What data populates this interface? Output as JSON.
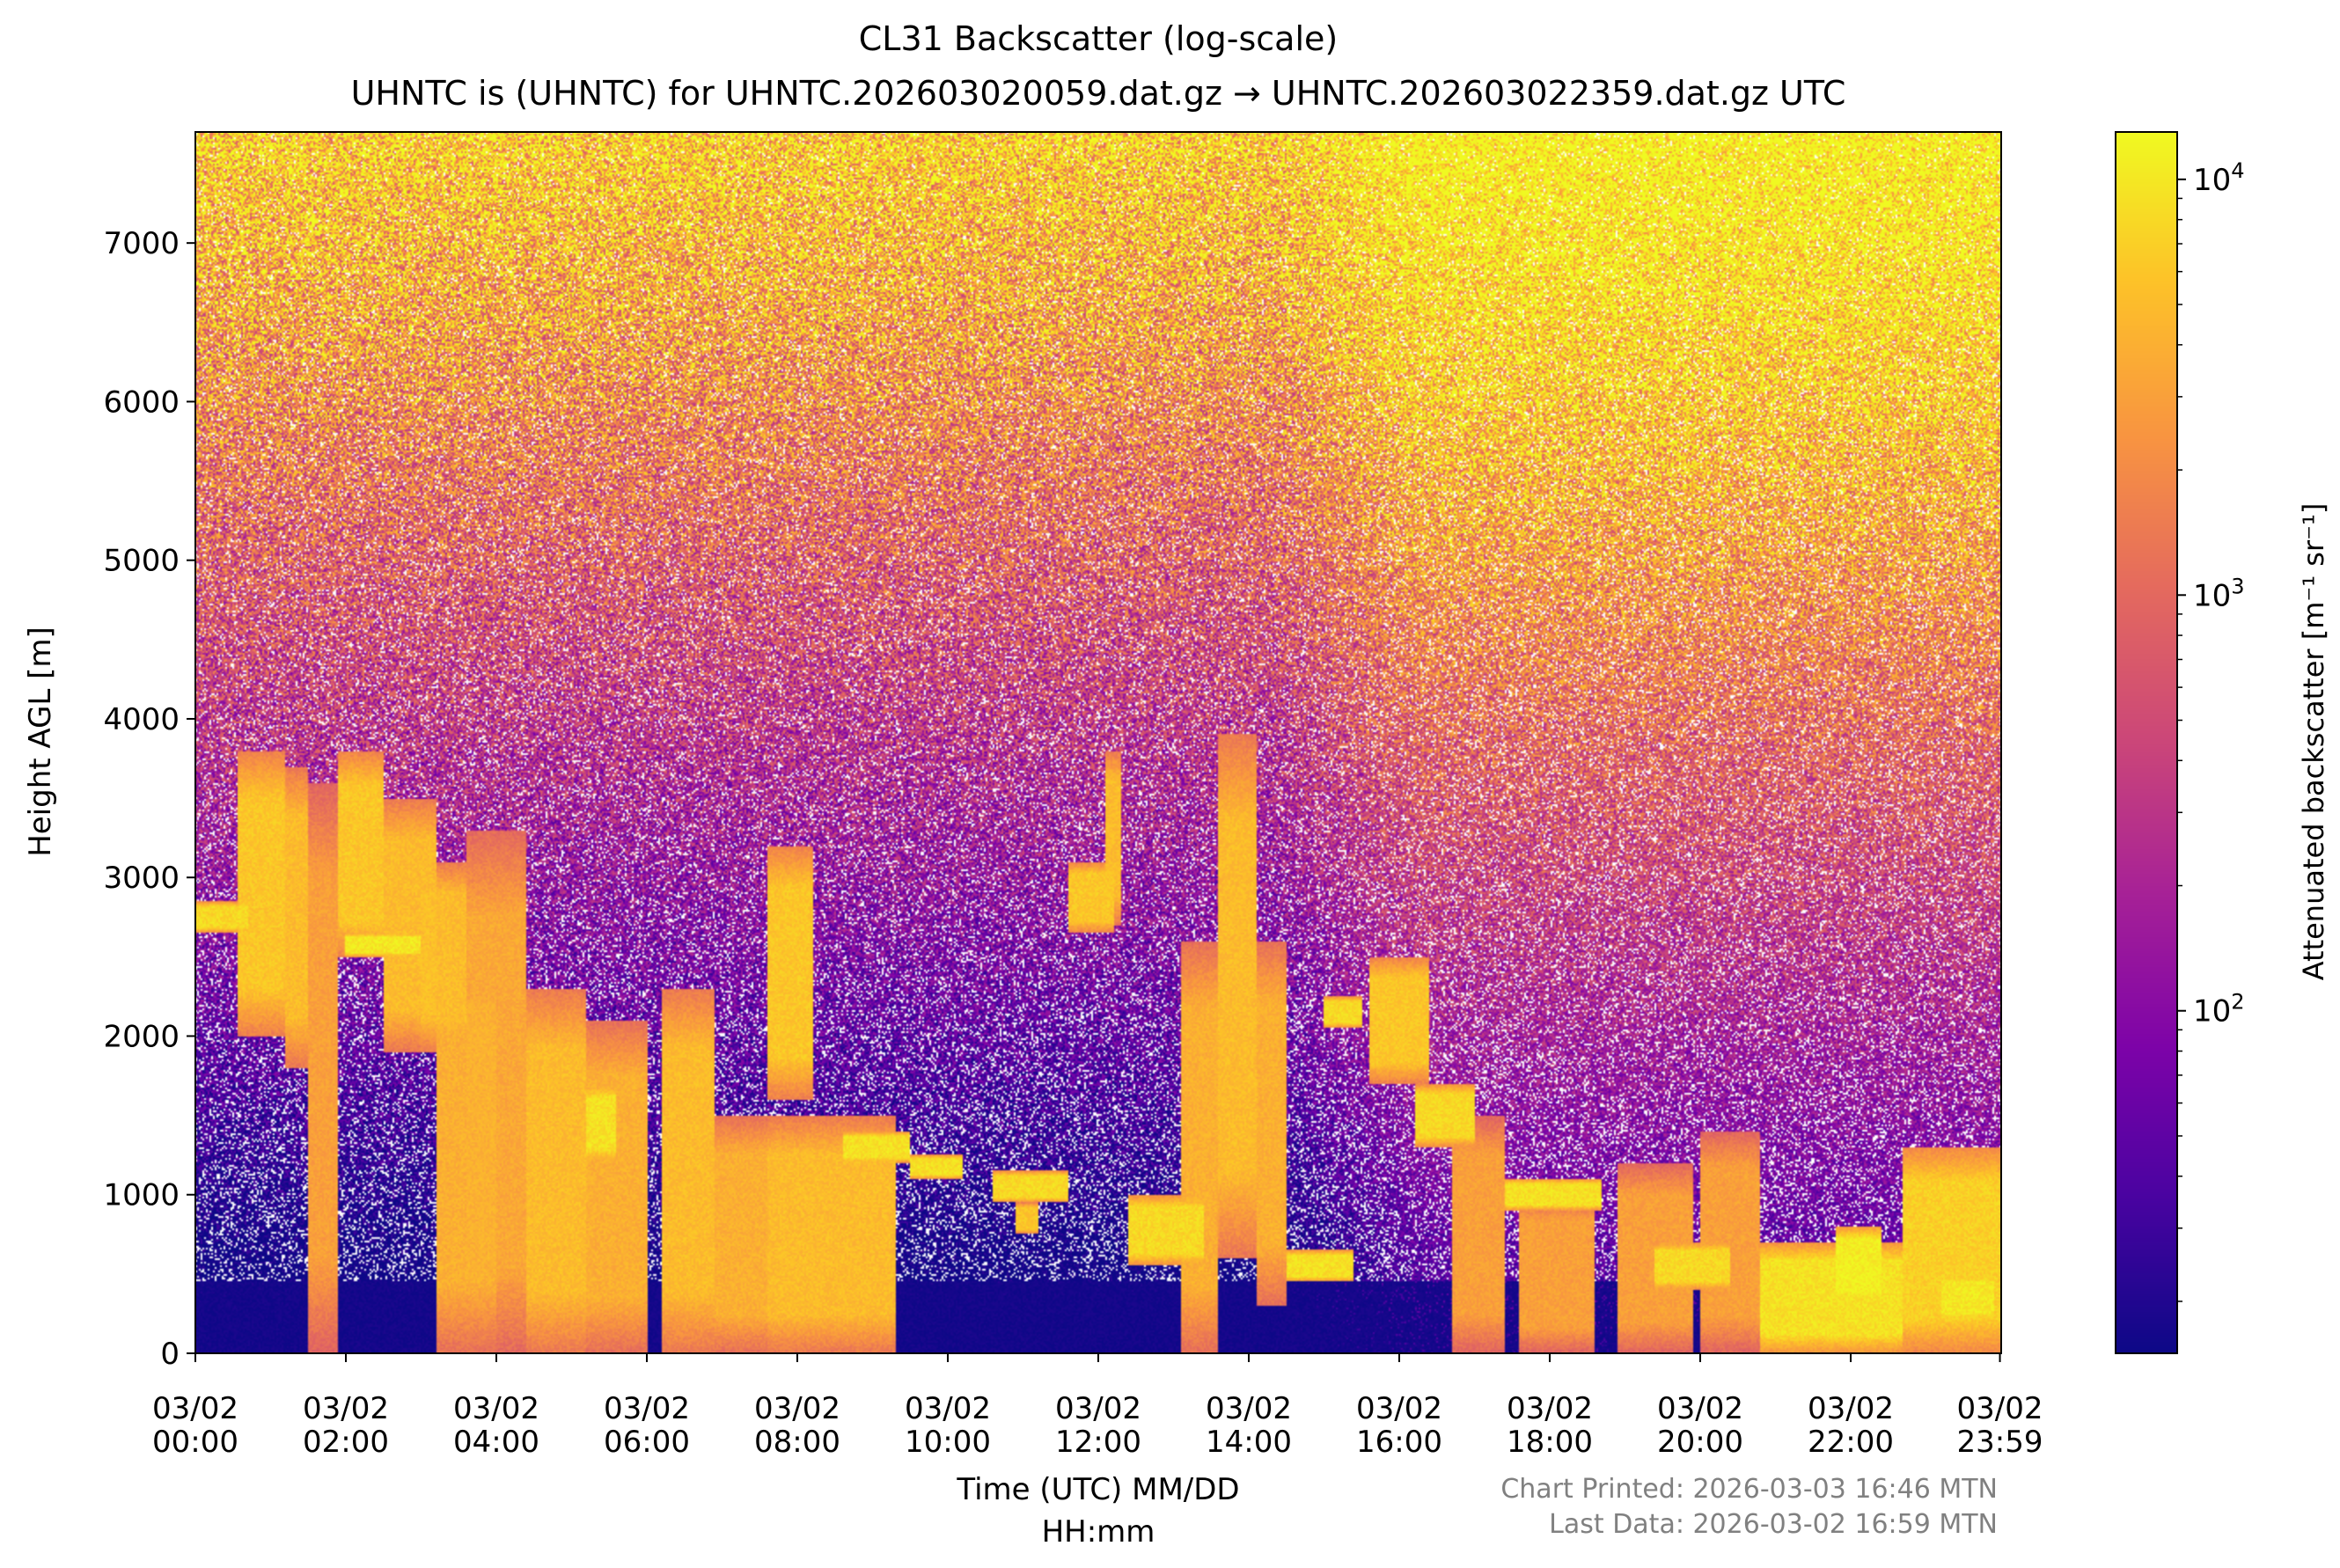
{
  "chart_data": {
    "type": "heatmap",
    "title": "CL31 Backscatter (log-scale)",
    "subtitle": "UHNTC is (UHNTC) for UHNTC.202603020059.dat.gz → UHNTC.202603022359.dat.gz UTC",
    "xlabel_line1": "Time (UTC) MM/DD",
    "xlabel_line2": "HH:mm",
    "ylabel": "Height AGL [m]",
    "colorbar_label": "Attenuated backscatter [m⁻¹ sr⁻¹]",
    "colormap": "plasma",
    "color_scale": "log",
    "colorbar_range": [
      15,
      13000
    ],
    "colorbar_ticks": [
      {
        "value": 100,
        "base": "10",
        "exp": "2"
      },
      {
        "value": 1000,
        "base": "10",
        "exp": "3"
      },
      {
        "value": 10000,
        "base": "10",
        "exp": "4"
      }
    ],
    "x_range_hours": [
      0,
      24
    ],
    "x_ticks": [
      {
        "hour": 0,
        "date": "03/02",
        "time": "00:00"
      },
      {
        "hour": 2,
        "date": "03/02",
        "time": "02:00"
      },
      {
        "hour": 4,
        "date": "03/02",
        "time": "04:00"
      },
      {
        "hour": 6,
        "date": "03/02",
        "time": "06:00"
      },
      {
        "hour": 8,
        "date": "03/02",
        "time": "08:00"
      },
      {
        "hour": 10,
        "date": "03/02",
        "time": "10:00"
      },
      {
        "hour": 12,
        "date": "03/02",
        "time": "12:00"
      },
      {
        "hour": 14,
        "date": "03/02",
        "time": "14:00"
      },
      {
        "hour": 16,
        "date": "03/02",
        "time": "16:00"
      },
      {
        "hour": 18,
        "date": "03/02",
        "time": "18:00"
      },
      {
        "hour": 20,
        "date": "03/02",
        "time": "20:00"
      },
      {
        "hour": 22,
        "date": "03/02",
        "time": "22:00"
      },
      {
        "hour": 23.983,
        "date": "03/02",
        "time": "23:59"
      }
    ],
    "y_range": [
      0,
      7700
    ],
    "y_ticks": [
      0,
      1000,
      2000,
      3000,
      4000,
      5000,
      6000,
      7000
    ],
    "footer_line1": "Chart Printed: 2026-03-03 16:46 MTN",
    "footer_line2": "Last Data: 2026-03-02 16:59 MTN",
    "cloud_layers": [
      {
        "t0": 0.0,
        "t1": 0.7,
        "base": 2650,
        "top": 2850,
        "value": 8000
      },
      {
        "t0": 0.55,
        "t1": 1.2,
        "base": 2000,
        "top": 3800,
        "value": 6000
      },
      {
        "t0": 1.2,
        "t1": 1.5,
        "base": 1800,
        "top": 3700,
        "value": 5000
      },
      {
        "t0": 1.5,
        "t1": 1.9,
        "base": 0,
        "top": 3600,
        "value": 3000
      },
      {
        "t0": 1.9,
        "t1": 2.5,
        "base": 2500,
        "top": 3800,
        "value": 6000
      },
      {
        "t0": 2.0,
        "t1": 3.0,
        "base": 2500,
        "top": 2650,
        "value": 10000
      },
      {
        "t0": 2.5,
        "t1": 3.2,
        "base": 1900,
        "top": 3500,
        "value": 5000
      },
      {
        "t0": 3.0,
        "t1": 3.6,
        "base": 1900,
        "top": 3100,
        "value": 5000
      },
      {
        "t0": 3.2,
        "t1": 4.0,
        "base": 0,
        "top": 2600,
        "value": 4000
      },
      {
        "t0": 3.6,
        "t1": 4.4,
        "base": 0,
        "top": 3300,
        "value": 3500
      },
      {
        "t0": 4.4,
        "t1": 5.2,
        "base": 0,
        "top": 2300,
        "value": 5000
      },
      {
        "t0": 5.2,
        "t1": 6.0,
        "base": 0,
        "top": 2100,
        "value": 4000
      },
      {
        "t0": 5.2,
        "t1": 5.6,
        "base": 1200,
        "top": 1700,
        "value": 9000
      },
      {
        "t0": 6.2,
        "t1": 6.9,
        "base": 0,
        "top": 2300,
        "value": 5000
      },
      {
        "t0": 6.9,
        "t1": 7.6,
        "base": 0,
        "top": 1500,
        "value": 4000
      },
      {
        "t0": 7.6,
        "t1": 9.3,
        "base": 0,
        "top": 1500,
        "value": 5000
      },
      {
        "t0": 7.6,
        "t1": 8.2,
        "base": 1600,
        "top": 3200,
        "value": 6000
      },
      {
        "t0": 8.6,
        "t1": 9.5,
        "base": 1200,
        "top": 1400,
        "value": 9000
      },
      {
        "t0": 9.5,
        "t1": 10.2,
        "base": 1100,
        "top": 1250,
        "value": 9000
      },
      {
        "t0": 10.6,
        "t1": 11.6,
        "base": 950,
        "top": 1150,
        "value": 8000
      },
      {
        "t0": 10.9,
        "t1": 11.2,
        "base": 750,
        "top": 950,
        "value": 6000
      },
      {
        "t0": 11.6,
        "t1": 12.2,
        "base": 2650,
        "top": 3100,
        "value": 6000
      },
      {
        "t0": 12.1,
        "t1": 12.3,
        "base": 2700,
        "top": 3800,
        "value": 5000
      },
      {
        "t0": 12.4,
        "t1": 13.4,
        "base": 550,
        "top": 1000,
        "value": 8000
      },
      {
        "t0": 13.1,
        "t1": 13.6,
        "base": 0,
        "top": 2600,
        "value": 4000
      },
      {
        "t0": 13.6,
        "t1": 14.1,
        "base": 600,
        "top": 3900,
        "value": 5000
      },
      {
        "t0": 14.1,
        "t1": 14.5,
        "base": 300,
        "top": 2600,
        "value": 4000
      },
      {
        "t0": 14.5,
        "t1": 15.4,
        "base": 450,
        "top": 650,
        "value": 9000
      },
      {
        "t0": 15.0,
        "t1": 15.5,
        "base": 2050,
        "top": 2250,
        "value": 8000
      },
      {
        "t0": 15.6,
        "t1": 16.4,
        "base": 1700,
        "top": 2500,
        "value": 6000
      },
      {
        "t0": 16.2,
        "t1": 17.0,
        "base": 1300,
        "top": 1700,
        "value": 8000
      },
      {
        "t0": 16.7,
        "t1": 17.4,
        "base": 0,
        "top": 1500,
        "value": 3000
      },
      {
        "t0": 17.4,
        "t1": 18.7,
        "base": 900,
        "top": 1100,
        "value": 9000
      },
      {
        "t0": 17.6,
        "t1": 18.6,
        "base": 0,
        "top": 1000,
        "value": 3000
      },
      {
        "t0": 18.9,
        "t1": 19.9,
        "base": 0,
        "top": 1200,
        "value": 3000
      },
      {
        "t0": 19.4,
        "t1": 20.4,
        "base": 400,
        "top": 700,
        "value": 8000
      },
      {
        "t0": 20.0,
        "t1": 20.8,
        "base": 0,
        "top": 1400,
        "value": 3000
      },
      {
        "t0": 20.8,
        "t1": 22.7,
        "base": 0,
        "top": 700,
        "value": 9000
      },
      {
        "t0": 21.8,
        "t1": 22.4,
        "base": 300,
        "top": 800,
        "value": 11000
      },
      {
        "t0": 22.7,
        "t1": 24.0,
        "base": 0,
        "top": 1300,
        "value": 7000
      },
      {
        "t0": 23.2,
        "t1": 23.9,
        "base": 200,
        "top": 500,
        "value": 10000
      }
    ]
  }
}
